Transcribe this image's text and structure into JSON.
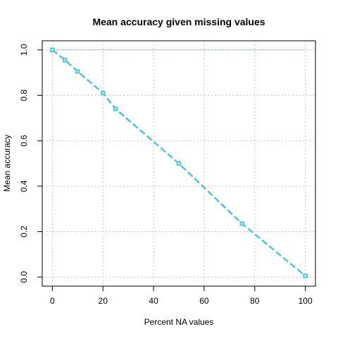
{
  "chart_data": {
    "type": "line",
    "title": "Mean accuracy given missing values",
    "xlabel": "Percent NA values",
    "ylabel": "Mean accuracy",
    "xlim": [
      0,
      100
    ],
    "ylim": [
      0,
      1
    ],
    "xticks": [
      0,
      20,
      40,
      60,
      80,
      100
    ],
    "yticks": [
      0.0,
      0.2,
      0.4,
      0.6,
      0.8,
      1.0
    ],
    "xtick_labels": [
      "0",
      "20",
      "40",
      "60",
      "80",
      "100"
    ],
    "ytick_labels": [
      "0.0",
      "0.2",
      "0.4",
      "0.6",
      "0.8",
      "1.0"
    ],
    "grid": true,
    "series": [
      {
        "x": [
          0,
          5,
          10,
          20,
          25,
          50,
          75,
          100
        ],
        "y": [
          1.0,
          0.955,
          0.905,
          0.81,
          0.74,
          0.5,
          0.235,
          0.005
        ],
        "color": "#4fc3dc",
        "marker": "square",
        "line_style": "dashed"
      }
    ],
    "reference_line": {
      "y": 1.0,
      "color": "#2a7b9b",
      "line_style": "dotted"
    }
  }
}
